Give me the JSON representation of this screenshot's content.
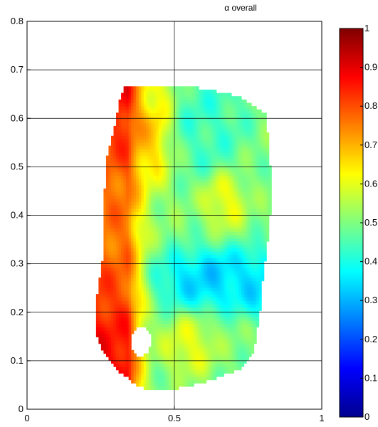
{
  "chart_data": {
    "type": "heatmap",
    "title": "α  overall",
    "xlabel": "",
    "ylabel": "",
    "xlim": [
      0,
      1
    ],
    "ylim": [
      0,
      0.8
    ],
    "x_ticks": [
      0,
      0.5,
      1
    ],
    "x_tick_labels": [
      "0",
      "0.5",
      "1"
    ],
    "y_ticks": [
      0,
      0.1,
      0.2,
      0.3,
      0.4,
      0.5,
      0.6,
      0.7,
      0.8
    ],
    "y_tick_labels": [
      "0",
      "0.1",
      "0.2",
      "0.3",
      "0.4",
      "0.5",
      "0.6",
      "0.7",
      "0.8"
    ],
    "grid": true,
    "colormap": "jet",
    "clim": [
      0,
      1
    ],
    "colorbar_ticks": [
      0,
      0.1,
      0.2,
      0.3,
      0.4,
      0.5,
      0.6,
      0.7,
      0.8,
      0.9,
      1
    ],
    "colorbar_tick_labels": [
      "0",
      "0.1",
      "0.2",
      "0.3",
      "0.4",
      "0.5",
      "0.6",
      "0.7",
      "0.8",
      "0.9",
      "1"
    ],
    "region_outline": [
      [
        0.33,
        0.665
      ],
      [
        0.45,
        0.668
      ],
      [
        0.6,
        0.662
      ],
      [
        0.72,
        0.645
      ],
      [
        0.81,
        0.61
      ],
      [
        0.82,
        0.55
      ],
      [
        0.83,
        0.45
      ],
      [
        0.82,
        0.36
      ],
      [
        0.8,
        0.27
      ],
      [
        0.79,
        0.2
      ],
      [
        0.77,
        0.12
      ],
      [
        0.73,
        0.085
      ],
      [
        0.6,
        0.055
      ],
      [
        0.47,
        0.038
      ],
      [
        0.38,
        0.045
      ],
      [
        0.3,
        0.085
      ],
      [
        0.25,
        0.125
      ],
      [
        0.23,
        0.17
      ],
      [
        0.24,
        0.25
      ],
      [
        0.26,
        0.32
      ],
      [
        0.26,
        0.42
      ],
      [
        0.27,
        0.52
      ],
      [
        0.3,
        0.59
      ],
      [
        0.31,
        0.63
      ]
    ],
    "hole": {
      "x": 0.385,
      "y": 0.14,
      "rx": 0.035,
      "ry": 0.03
    },
    "field_features": [
      {
        "x": 0.22,
        "y": 0.3,
        "value": 0.88,
        "sx": 0.1,
        "sy": 0.4
      },
      {
        "x": 0.35,
        "y": 0.6,
        "value": 0.8,
        "sx": 0.1,
        "sy": 0.1
      },
      {
        "x": 0.63,
        "y": 0.27,
        "value": 0.3,
        "sx": 0.14,
        "sy": 0.045
      },
      {
        "x": 0.78,
        "y": 0.26,
        "value": 0.33,
        "sx": 0.05,
        "sy": 0.05
      },
      {
        "x": 0.6,
        "y": 0.6,
        "value": 0.42,
        "sx": 0.1,
        "sy": 0.08
      },
      {
        "x": 0.67,
        "y": 0.43,
        "value": 0.63,
        "sx": 0.05,
        "sy": 0.04
      },
      {
        "x": 0.55,
        "y": 0.13,
        "value": 0.62,
        "sx": 0.06,
        "sy": 0.04
      },
      {
        "x": 0.44,
        "y": 0.64,
        "value": 0.58,
        "sx": 0.05,
        "sy": 0.03
      }
    ],
    "field_baseline": 0.5
  }
}
